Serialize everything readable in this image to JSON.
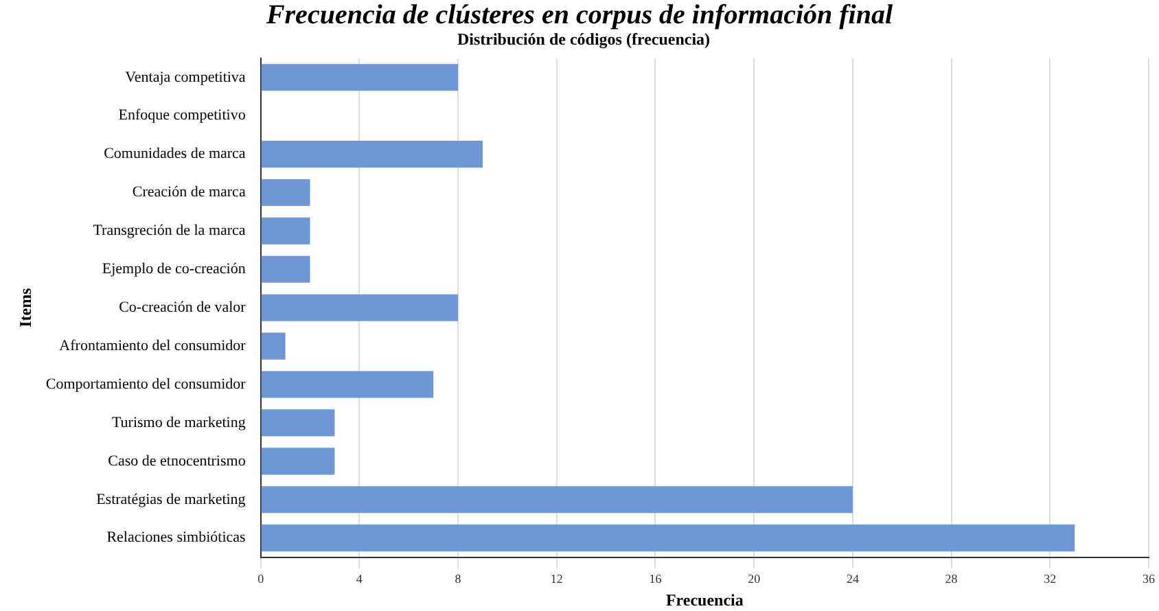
{
  "chart_data": {
    "type": "bar",
    "orientation": "horizontal",
    "title": "Frecuencia de clústeres en corpus de información final",
    "subtitle": "Distribución de códigos (frecuencia)",
    "xlabel": "Frecuencia",
    "ylabel": "Items",
    "categories": [
      "Ventaja competitiva",
      "Enfoque competitivo",
      "Comunidades de marca",
      "Creación de marca",
      "Transgreción de la marca",
      "Ejemplo de co-creación",
      "Co-creación de valor",
      "Afrontamiento del consumidor",
      "Comportamiento del consumidor",
      "Turismo de marketing",
      "Caso de etnocentrismo",
      "Estratégias de marketing",
      "Relaciones simbióticas"
    ],
    "values": [
      8,
      0,
      9,
      2,
      2,
      2,
      8,
      1,
      7,
      3,
      3,
      24,
      33
    ],
    "color": "#6f96d6",
    "xlim": [
      0,
      36
    ],
    "xticks": [
      0,
      4,
      8,
      12,
      16,
      20,
      24,
      28,
      32,
      36
    ],
    "grid": "x",
    "legend": false
  }
}
